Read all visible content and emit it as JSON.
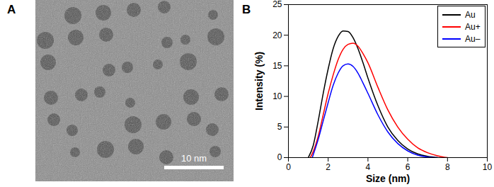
{
  "chart_data": [
    {
      "type": "image",
      "panel": "A",
      "scale_bar_label": "10 nm"
    },
    {
      "type": "line",
      "panel": "B",
      "x_label": "Size (nm)",
      "y_label": "Intensity (%)",
      "xlim": [
        0,
        10
      ],
      "xticks": [
        0,
        2,
        4,
        6,
        8,
        10
      ],
      "ylim": [
        0,
        25
      ],
      "yticks": [
        0,
        5,
        10,
        15,
        20,
        25
      ],
      "legend": "upper right",
      "series": [
        {
          "name": "Au",
          "color": "#000000",
          "x": [
            1.0,
            1.25,
            1.5,
            1.75,
            2.0,
            2.25,
            2.5,
            2.75,
            3.0,
            3.25,
            3.5,
            3.75,
            4.0,
            4.5,
            5.0,
            5.5,
            6.0,
            6.5,
            7.0,
            7.5
          ],
          "values": [
            0,
            2,
            6,
            10.5,
            14.5,
            17.8,
            19.8,
            20.7,
            20.6,
            19.6,
            17.8,
            15.5,
            13,
            8.5,
            5,
            2.8,
            1.4,
            0.6,
            0.2,
            0
          ]
        },
        {
          "name": "Au+",
          "color": "#ff0000",
          "x": [
            1.1,
            1.25,
            1.5,
            1.75,
            2.0,
            2.25,
            2.5,
            2.75,
            3.0,
            3.25,
            3.5,
            3.75,
            4.0,
            4.5,
            5.0,
            5.5,
            6.0,
            6.5,
            7.0,
            7.5,
            8.0
          ],
          "values": [
            0,
            1,
            3.5,
            7,
            10.5,
            13.5,
            16,
            17.7,
            18.5,
            18.7,
            18.2,
            17,
            15.5,
            11.5,
            7.8,
            5,
            3,
            1.6,
            0.8,
            0.3,
            0
          ]
        },
        {
          "name": "Au–",
          "color": "#0000ff",
          "x": [
            1.2,
            1.5,
            1.75,
            2.0,
            2.25,
            2.5,
            2.75,
            3.0,
            3.25,
            3.5,
            3.75,
            4.0,
            4.5,
            5.0,
            5.5,
            6.0,
            6.5,
            7.0,
            7.5
          ],
          "values": [
            0,
            3,
            6,
            9,
            11.8,
            13.8,
            15,
            15.3,
            14.9,
            13.8,
            12.2,
            10.5,
            7,
            4.2,
            2.3,
            1.1,
            0.4,
            0.1,
            0
          ]
        }
      ]
    }
  ]
}
